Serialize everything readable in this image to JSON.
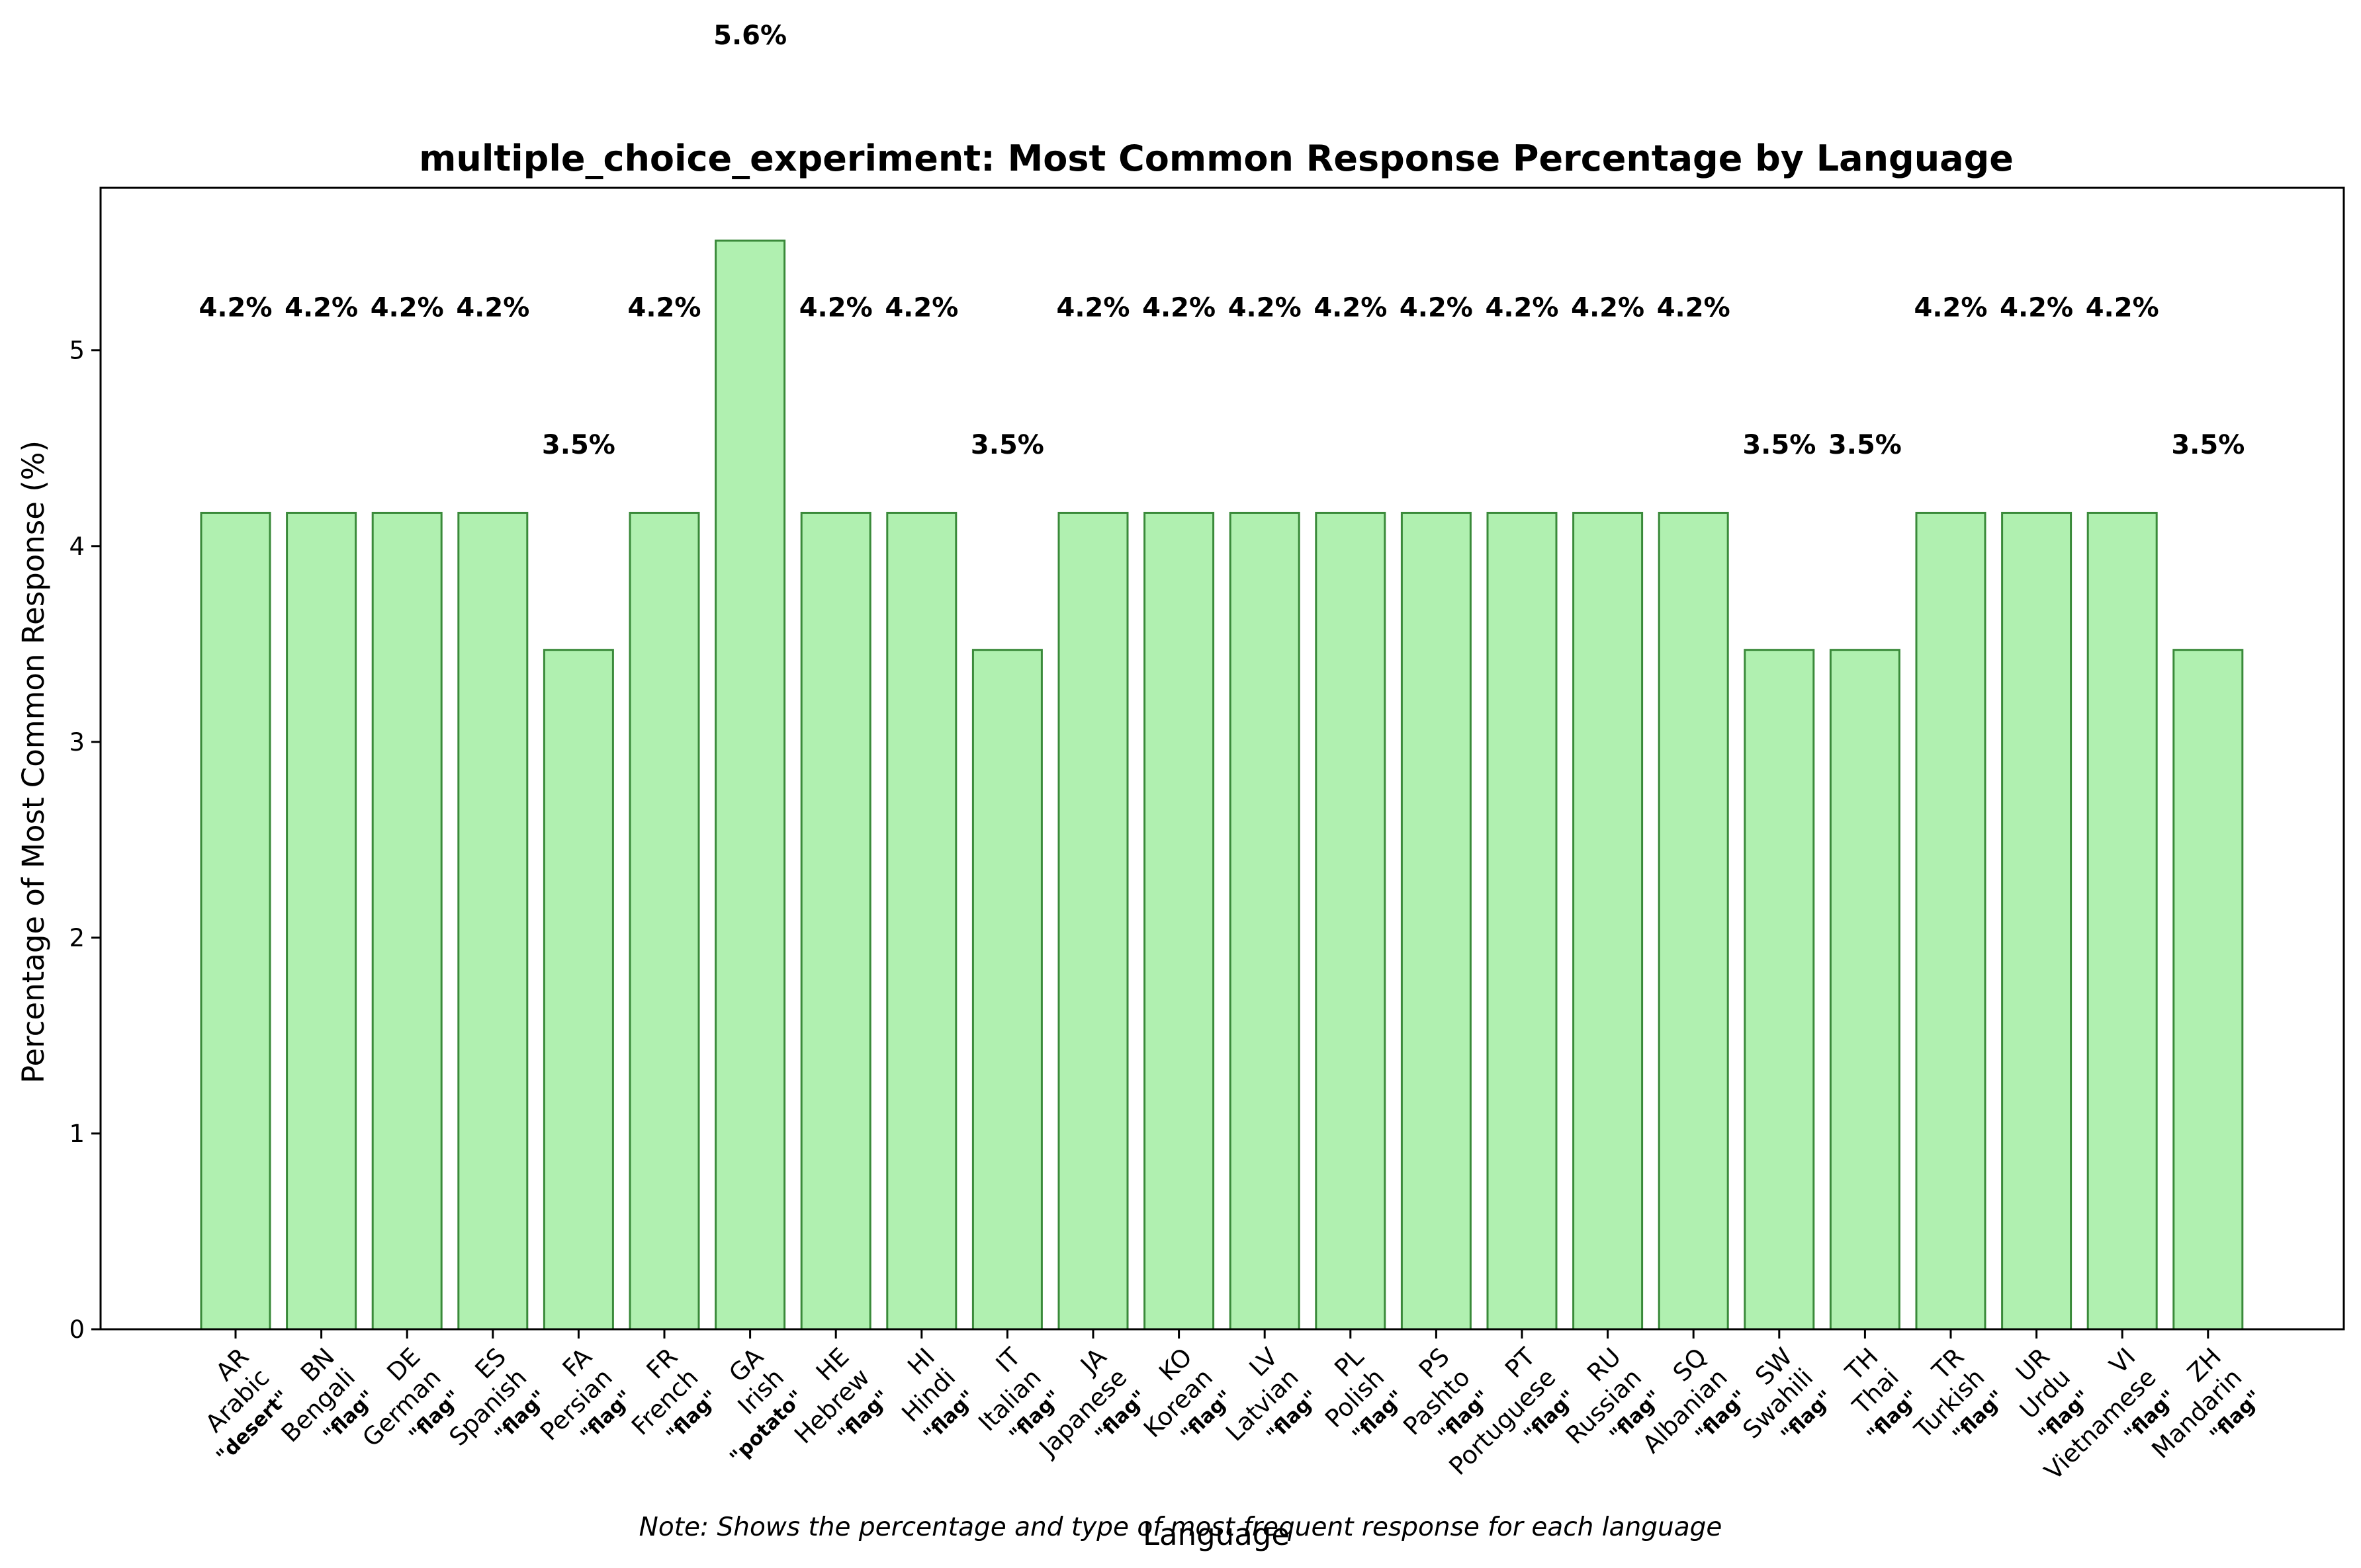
{
  "chart_data": {
    "type": "bar",
    "title": "multiple_choice_experiment: Most Common Response Percentage by Language",
    "xlabel": "Language",
    "ylabel": "Percentage of Most Common Response (%)",
    "note": "Note: Shows the percentage and type of most frequent response for each language",
    "ylim": [
      0,
      5.83
    ],
    "yticks": [
      0,
      1,
      2,
      3,
      4,
      5
    ],
    "grid": false,
    "bar_color": "#b0f0b0",
    "bar_edge_color": "#3a8a3a",
    "categories": [
      {
        "code": "AR",
        "name": "Arabic",
        "response": "\"desert\"",
        "value": 4.17,
        "label": "4.2%"
      },
      {
        "code": "BN",
        "name": "Bengali",
        "response": "\"flag\"",
        "value": 4.17,
        "label": "4.2%"
      },
      {
        "code": "DE",
        "name": "German",
        "response": "\"flag\"",
        "value": 4.17,
        "label": "4.2%"
      },
      {
        "code": "ES",
        "name": "Spanish",
        "response": "\"flag\"",
        "value": 4.17,
        "label": "4.2%"
      },
      {
        "code": "FA",
        "name": "Persian",
        "response": "\"flag\"",
        "value": 3.47,
        "label": "3.5%"
      },
      {
        "code": "FR",
        "name": "French",
        "response": "\"flag\"",
        "value": 4.17,
        "label": "4.2%"
      },
      {
        "code": "GA",
        "name": "Irish",
        "response": "\"potato\"",
        "value": 5.56,
        "label": "5.6%"
      },
      {
        "code": "HE",
        "name": "Hebrew",
        "response": "\"flag\"",
        "value": 4.17,
        "label": "4.2%"
      },
      {
        "code": "HI",
        "name": "Hindi",
        "response": "\"flag\"",
        "value": 4.17,
        "label": "4.2%"
      },
      {
        "code": "IT",
        "name": "Italian",
        "response": "\"flag\"",
        "value": 3.47,
        "label": "3.5%"
      },
      {
        "code": "JA",
        "name": "Japanese",
        "response": "\"flag\"",
        "value": 4.17,
        "label": "4.2%"
      },
      {
        "code": "KO",
        "name": "Korean",
        "response": "\"flag\"",
        "value": 4.17,
        "label": "4.2%"
      },
      {
        "code": "LV",
        "name": "Latvian",
        "response": "\"flag\"",
        "value": 4.17,
        "label": "4.2%"
      },
      {
        "code": "PL",
        "name": "Polish",
        "response": "\"flag\"",
        "value": 4.17,
        "label": "4.2%"
      },
      {
        "code": "PS",
        "name": "Pashto",
        "response": "\"flag\"",
        "value": 4.17,
        "label": "4.2%"
      },
      {
        "code": "PT",
        "name": "Portuguese",
        "response": "\"flag\"",
        "value": 4.17,
        "label": "4.2%"
      },
      {
        "code": "RU",
        "name": "Russian",
        "response": "\"flag\"",
        "value": 4.17,
        "label": "4.2%"
      },
      {
        "code": "SQ",
        "name": "Albanian",
        "response": "\"flag\"",
        "value": 4.17,
        "label": "4.2%"
      },
      {
        "code": "SW",
        "name": "Swahili",
        "response": "\"flag\"",
        "value": 3.47,
        "label": "3.5%"
      },
      {
        "code": "TH",
        "name": "Thai",
        "response": "\"flag\"",
        "value": 3.47,
        "label": "3.5%"
      },
      {
        "code": "TR",
        "name": "Turkish",
        "response": "\"flag\"",
        "value": 4.17,
        "label": "4.2%"
      },
      {
        "code": "UR",
        "name": "Urdu",
        "response": "\"flag\"",
        "value": 4.17,
        "label": "4.2%"
      },
      {
        "code": "VI",
        "name": "Vietnamese",
        "response": "\"flag\"",
        "value": 4.17,
        "label": "4.2%"
      },
      {
        "code": "ZH",
        "name": "Mandarin",
        "response": "\"flag\"",
        "value": 3.47,
        "label": "3.5%"
      }
    ]
  }
}
